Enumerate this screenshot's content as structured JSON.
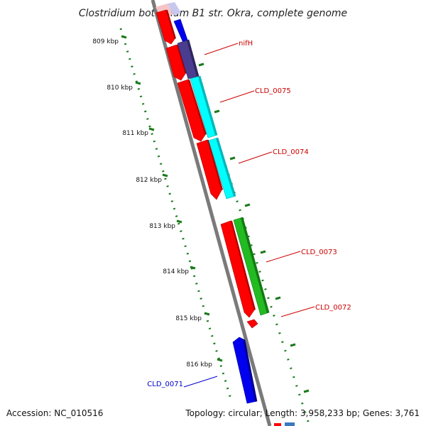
{
  "title": "Clostridium botulinum B1 str. Okra, complete genome",
  "footer": {
    "accession": "Accession: NC_010516",
    "summary": "Topology: circular; Length: 3,958,233 bp; Genes: 3,761"
  },
  "colors": {
    "backbone": "#808080",
    "ticks": "#1a7a1a",
    "forward_label": "#cc0000",
    "reverse_label": "#0000cc"
  },
  "ticks": [
    {
      "label": "809 kbp"
    },
    {
      "label": "810 kbp"
    },
    {
      "label": "811 kbp"
    },
    {
      "label": "812 kbp"
    },
    {
      "label": "813 kbp"
    },
    {
      "label": "814 kbp"
    },
    {
      "label": "815 kbp"
    },
    {
      "label": "816 kbp"
    }
  ],
  "gene_labels": [
    {
      "name": "nifH",
      "strand": "forward"
    },
    {
      "name": "CLD_0075",
      "strand": "forward"
    },
    {
      "name": "CLD_0074",
      "strand": "forward"
    },
    {
      "name": "CLD_0073",
      "strand": "forward"
    },
    {
      "name": "CLD_0072",
      "strand": "forward"
    },
    {
      "name": "CLD_0071",
      "strand": "reverse"
    }
  ]
}
